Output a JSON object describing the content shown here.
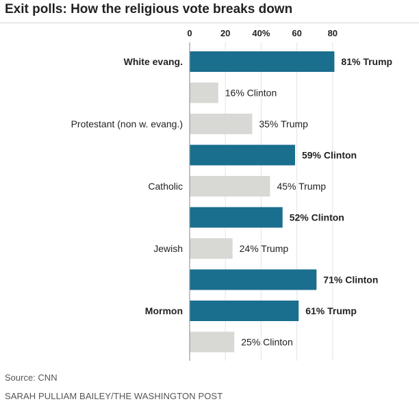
{
  "title": "Exit polls: How the religious vote breaks down",
  "source": "Source: CNN",
  "credit": "SARAH PULLIAM BAILEY/THE WASHINGTON POST",
  "colors": {
    "highlight_bar": "#1a6e8e",
    "secondary_bar": "#d8d8d4",
    "axis": "#999999",
    "grid": "#e3e3e3",
    "text": "#222222"
  },
  "chart_data": {
    "type": "bar",
    "orientation": "horizontal",
    "title": "Exit polls: How the religious vote breaks down",
    "xlim": [
      0,
      100
    ],
    "x_ticks": [
      "0",
      "20",
      "40%",
      "60",
      "80"
    ],
    "grid": true,
    "groups": [
      {
        "category": "White evang.",
        "bold": true,
        "bars": [
          {
            "value": 81,
            "label": "81% Trump",
            "winner": true
          },
          {
            "value": 16,
            "label": "16% Clinton",
            "winner": false
          }
        ]
      },
      {
        "category": "Protestant (non w. evang.)",
        "bold": false,
        "bars": [
          {
            "value": 35,
            "label": "35% Trump",
            "winner": false
          },
          {
            "value": 59,
            "label": "59% Clinton",
            "winner": true
          }
        ]
      },
      {
        "category": "Catholic",
        "bold": false,
        "bars": [
          {
            "value": 45,
            "label": "45% Trump",
            "winner": false
          },
          {
            "value": 52,
            "label": "52% Clinton",
            "winner": true
          }
        ]
      },
      {
        "category": "Jewish",
        "bold": false,
        "bars": [
          {
            "value": 24,
            "label": "24% Trump",
            "winner": false
          },
          {
            "value": 71,
            "label": "71% Clinton",
            "winner": true
          }
        ]
      },
      {
        "category": "Mormon",
        "bold": true,
        "bars": [
          {
            "value": 61,
            "label": "61% Trump",
            "winner": true
          },
          {
            "value": 25,
            "label": "25% Clinton",
            "winner": false
          }
        ]
      }
    ]
  }
}
